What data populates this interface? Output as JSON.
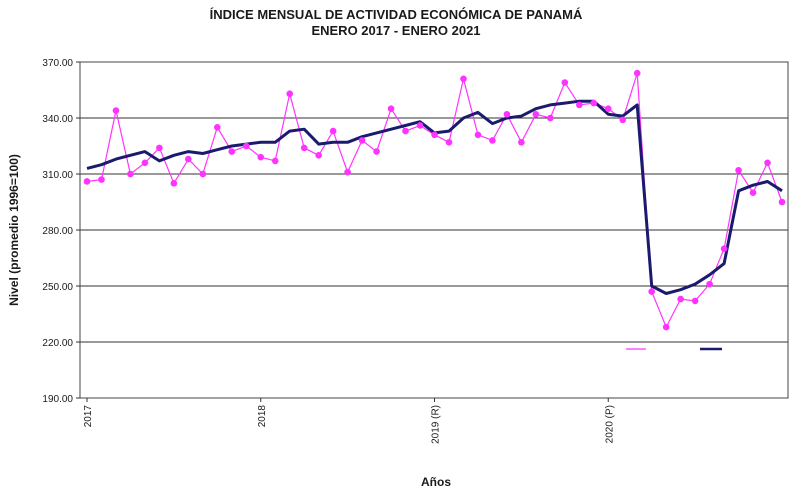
{
  "chart_data": {
    "type": "line",
    "title": "ÍNDICE MENSUAL DE ACTIVIDAD ECONÓMICA DE PANAMÁ",
    "subtitle": "ENERO 2017 -  ENERO 2021",
    "xlabel": "Años",
    "ylabel": "Nivel (promedio 1996=100)",
    "ylim": [
      190,
      370
    ],
    "yticks": [
      190,
      220,
      250,
      280,
      310,
      340,
      370
    ],
    "ytick_labels": [
      "190.00",
      "220.00",
      "250.00",
      "280.00",
      "310.00",
      "340.00",
      "370.00"
    ],
    "xtick_labels": [
      {
        "label": "2017",
        "index": 0
      },
      {
        "label": "2018",
        "index": 12
      },
      {
        "label": "2019 (R)",
        "index": 24
      },
      {
        "label": "2020 (P)",
        "index": 36
      }
    ],
    "grid": "horizontal",
    "legend_position": "inside-lower-right",
    "months": [
      "2017-01",
      "2017-02",
      "2017-03",
      "2017-04",
      "2017-05",
      "2017-06",
      "2017-07",
      "2017-08",
      "2017-09",
      "2017-10",
      "2017-11",
      "2017-12",
      "2018-01",
      "2018-02",
      "2018-03",
      "2018-04",
      "2018-05",
      "2018-06",
      "2018-07",
      "2018-08",
      "2018-09",
      "2018-10",
      "2018-11",
      "2018-12",
      "2019-01",
      "2019-02",
      "2019-03",
      "2019-04",
      "2019-05",
      "2019-06",
      "2019-07",
      "2019-08",
      "2019-09",
      "2019-10",
      "2019-11",
      "2019-12",
      "2020-01",
      "2020-02",
      "2020-03",
      "2020-04",
      "2020-05",
      "2020-06",
      "2020-07",
      "2020-08",
      "2020-09",
      "2020-10",
      "2020-11",
      "2020-12",
      "2021-01"
    ],
    "series": [
      {
        "name": "",
        "color": "#ff33ff",
        "marker": "circle",
        "values": [
          306,
          307,
          344,
          310,
          316,
          324,
          305,
          318,
          310,
          335,
          322,
          325,
          319,
          317,
          353,
          324,
          320,
          333,
          311,
          328,
          322,
          345,
          333,
          336,
          331,
          327,
          361,
          331,
          328,
          342,
          327,
          342,
          340,
          359,
          347,
          348,
          345,
          339,
          364,
          247,
          228,
          243,
          242,
          251,
          270,
          312,
          300,
          316,
          295
        ]
      },
      {
        "name": "",
        "color": "#1a1a6e",
        "marker": "none",
        "values": [
          313,
          315,
          318,
          320,
          322,
          317,
          320,
          322,
          321,
          323,
          325,
          326,
          327,
          327,
          333,
          334,
          326,
          327,
          327,
          330,
          332,
          334,
          336,
          338,
          332,
          333,
          340,
          343,
          337,
          340,
          341,
          345,
          347,
          348,
          349,
          349,
          342,
          341,
          347,
          250,
          246,
          248,
          251,
          256,
          262,
          301,
          304,
          306,
          301
        ]
      }
    ]
  }
}
